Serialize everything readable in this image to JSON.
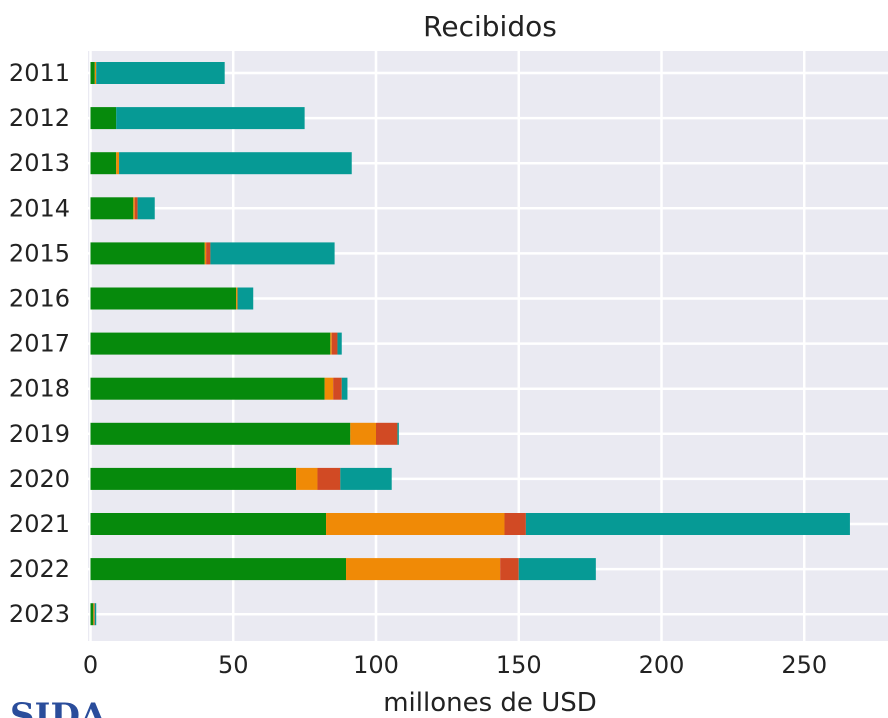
{
  "chart_data": {
    "type": "bar",
    "orientation": "horizontal",
    "stacked": true,
    "title": "Recibidos",
    "xlabel": "millones de USD",
    "ylabel": "",
    "xlim": [
      0,
      277
    ],
    "xticks": [
      0,
      50,
      100,
      150,
      200,
      250
    ],
    "grid": true,
    "categories": [
      "2011",
      "2012",
      "2013",
      "2014",
      "2015",
      "2016",
      "2017",
      "2018",
      "2019",
      "2020",
      "2021",
      "2022",
      "2023"
    ],
    "series": [
      {
        "color": "#068a0c",
        "values": [
          1.5,
          9,
          9,
          15,
          40,
          51,
          84,
          82,
          91,
          72,
          82.5,
          89.5,
          1
        ]
      },
      {
        "color": "#f08a06",
        "values": [
          0.5,
          0,
          1,
          0.5,
          0.5,
          0.5,
          0.5,
          3,
          9,
          7.5,
          62.5,
          54,
          0.3
        ]
      },
      {
        "color": "#d14a24",
        "values": [
          0,
          0,
          0,
          1,
          1.5,
          0,
          2,
          3,
          7.5,
          8,
          7.5,
          6.5,
          0.2
        ]
      },
      {
        "color": "#069a95",
        "values": [
          45,
          66,
          81.5,
          6,
          43.5,
          5.5,
          1.5,
          2,
          0.5,
          18,
          113.5,
          27,
          0.5
        ]
      }
    ]
  },
  "logo": {
    "text": "SIDA"
  }
}
